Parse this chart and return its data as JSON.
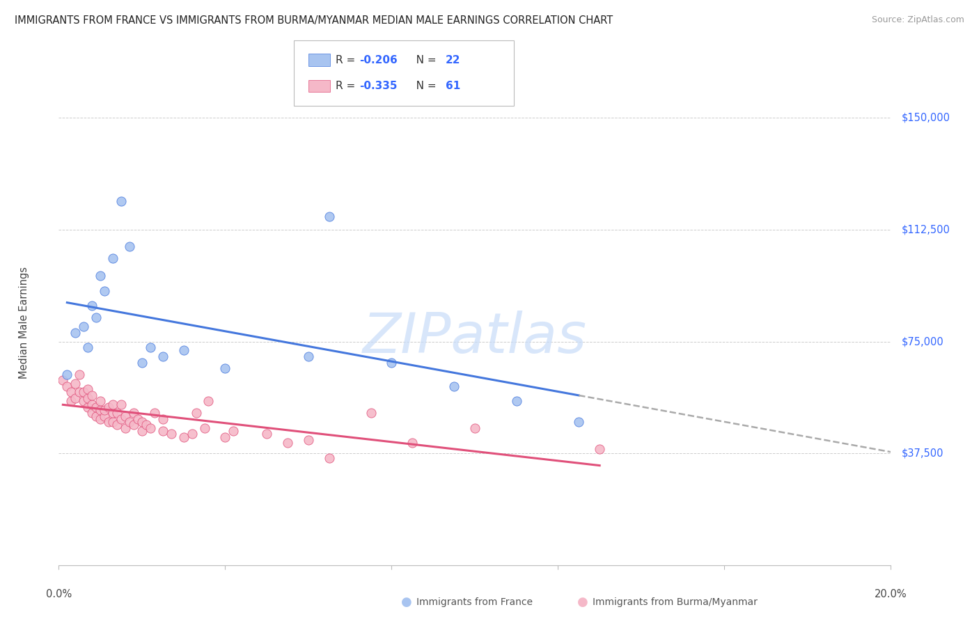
{
  "title": "IMMIGRANTS FROM FRANCE VS IMMIGRANTS FROM BURMA/MYANMAR MEDIAN MALE EARNINGS CORRELATION CHART",
  "source": "Source: ZipAtlas.com",
  "ylabel": "Median Male Earnings",
  "yticks": [
    0,
    37500,
    75000,
    112500,
    150000
  ],
  "ytick_labels": [
    "",
    "$37,500",
    "$75,000",
    "$112,500",
    "$150,000"
  ],
  "xlim": [
    0.0,
    0.2
  ],
  "ylim": [
    0,
    162500
  ],
  "france_color": "#A8C4F0",
  "france_line_color": "#4477DD",
  "burma_color": "#F5B8C8",
  "burma_line_color": "#E0507A",
  "legend_R1": "R = ",
  "legend_V1": "-0.206",
  "legend_N1": "N = ",
  "legend_NV1": "22",
  "legend_R2": "R = ",
  "legend_V2": "-0.335",
  "legend_N2": "N = ",
  "legend_NV2": "61",
  "stat_color": "#3366FF",
  "watermark": "ZIPatlas",
  "background_color": "#ffffff",
  "grid_color": "#cccccc",
  "france_x": [
    0.002,
    0.004,
    0.006,
    0.007,
    0.008,
    0.009,
    0.01,
    0.011,
    0.013,
    0.015,
    0.017,
    0.02,
    0.022,
    0.025,
    0.03,
    0.04,
    0.06,
    0.065,
    0.08,
    0.095,
    0.11,
    0.125
  ],
  "france_y": [
    64000,
    78000,
    80000,
    73000,
    87000,
    83000,
    97000,
    92000,
    103000,
    122000,
    107000,
    68000,
    73000,
    70000,
    72000,
    66000,
    70000,
    117000,
    68000,
    60000,
    55000,
    48000
  ],
  "burma_x": [
    0.001,
    0.002,
    0.003,
    0.003,
    0.004,
    0.004,
    0.005,
    0.005,
    0.006,
    0.006,
    0.007,
    0.007,
    0.007,
    0.008,
    0.008,
    0.008,
    0.009,
    0.009,
    0.01,
    0.01,
    0.01,
    0.011,
    0.011,
    0.012,
    0.012,
    0.013,
    0.013,
    0.013,
    0.014,
    0.014,
    0.015,
    0.015,
    0.016,
    0.016,
    0.017,
    0.018,
    0.018,
    0.019,
    0.02,
    0.02,
    0.021,
    0.022,
    0.023,
    0.025,
    0.025,
    0.027,
    0.03,
    0.032,
    0.033,
    0.035,
    0.036,
    0.04,
    0.042,
    0.05,
    0.055,
    0.06,
    0.065,
    0.075,
    0.085,
    0.1,
    0.13
  ],
  "burma_y": [
    62000,
    60000,
    55000,
    58000,
    56000,
    61000,
    58000,
    64000,
    55000,
    58000,
    53000,
    56000,
    59000,
    51000,
    54000,
    57000,
    50000,
    53000,
    49000,
    52000,
    55000,
    50000,
    52000,
    48000,
    53000,
    48000,
    51000,
    54000,
    47000,
    51000,
    49000,
    54000,
    46000,
    50000,
    48000,
    47000,
    51000,
    49000,
    45000,
    48000,
    47000,
    46000,
    51000,
    45000,
    49000,
    44000,
    43000,
    44000,
    51000,
    46000,
    55000,
    43000,
    45000,
    44000,
    41000,
    42000,
    36000,
    51000,
    41000,
    46000,
    39000
  ]
}
